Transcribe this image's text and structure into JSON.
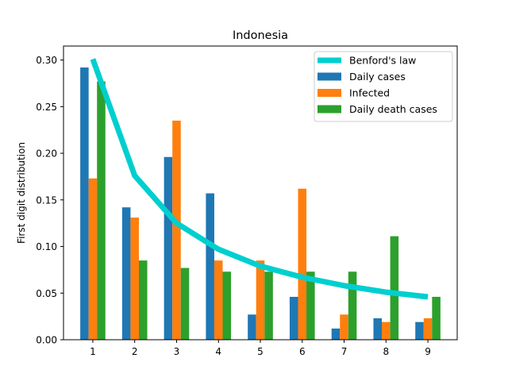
{
  "chart_data": {
    "type": "bar",
    "title": "Indonesia",
    "xlabel": "",
    "ylabel": "First digit distribution",
    "categories": [
      "1",
      "2",
      "3",
      "4",
      "5",
      "6",
      "7",
      "8",
      "9"
    ],
    "ylim": [
      0,
      0.315
    ],
    "yticks": [
      0.0,
      0.05,
      0.1,
      0.15,
      0.2,
      0.25,
      0.3
    ],
    "ytick_labels": [
      "0.00",
      "0.05",
      "0.10",
      "0.15",
      "0.20",
      "0.25",
      "0.30"
    ],
    "legend_position": "top-right",
    "grid": false,
    "line_series": {
      "name": "Benford's law",
      "color": "#00cfcf",
      "values": [
        0.301,
        0.176,
        0.125,
        0.097,
        0.079,
        0.067,
        0.058,
        0.051,
        0.046
      ]
    },
    "series": [
      {
        "name": "Daily cases",
        "color": "#1f77b4",
        "values": [
          0.292,
          0.142,
          0.196,
          0.157,
          0.027,
          0.046,
          0.012,
          0.023,
          0.019
        ]
      },
      {
        "name": "Infected",
        "color": "#ff7f0e",
        "values": [
          0.173,
          0.131,
          0.235,
          0.085,
          0.085,
          0.162,
          0.027,
          0.019,
          0.023
        ]
      },
      {
        "name": "Daily death cases",
        "color": "#2ca02c",
        "values": [
          0.277,
          0.085,
          0.077,
          0.073,
          0.073,
          0.073,
          0.073,
          0.111,
          0.046
        ]
      }
    ]
  }
}
